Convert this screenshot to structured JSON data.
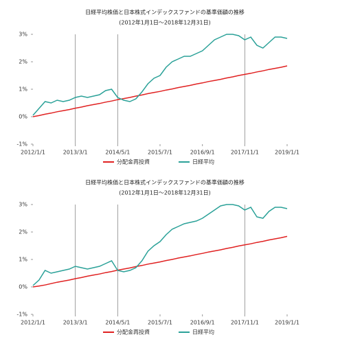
{
  "chart_data": [
    {
      "type": "line",
      "title": "日経平均株価と日本株式インデックスファンドの基準価額の推移",
      "subtitle": "(2012年1月1日～2018年12月31日)",
      "x": [
        0,
        2,
        4,
        6,
        8,
        10,
        12,
        14,
        16,
        18,
        20,
        22,
        24,
        26,
        28,
        30,
        32,
        34,
        36,
        38,
        40,
        42,
        44,
        46,
        48,
        50,
        52,
        54,
        56,
        58,
        60,
        62,
        64,
        66,
        68,
        70,
        72,
        74,
        76,
        78,
        80,
        82,
        84
      ],
      "xlim": [
        0,
        84
      ],
      "xticks": [
        {
          "value": 0,
          "label": "2012/1/1"
        },
        {
          "value": 14,
          "label": "2013/3/1"
        },
        {
          "value": 28,
          "label": "2014/5/1"
        },
        {
          "value": 42,
          "label": "2015/7/1"
        },
        {
          "value": 56,
          "label": "2016/9/1"
        },
        {
          "value": 70,
          "label": "2017/11/1"
        },
        {
          "value": 84,
          "label": "2019/1/1"
        }
      ],
      "vlines": [
        14,
        28,
        70
      ],
      "ylim": [
        -1,
        3
      ],
      "yticks": [
        {
          "value": -1,
          "label": "-1%"
        },
        {
          "value": 0,
          "label": "0%"
        },
        {
          "value": 1,
          "label": "1%"
        },
        {
          "value": 2,
          "label": "2%"
        },
        {
          "value": 3,
          "label": "3%"
        }
      ],
      "series": [
        {
          "name": "分配金再投資",
          "color": "#e02020",
          "values": [
            0,
            0.04,
            0.09,
            0.13,
            0.18,
            0.22,
            0.26,
            0.31,
            0.35,
            0.4,
            0.44,
            0.48,
            0.53,
            0.57,
            0.62,
            0.66,
            0.7,
            0.75,
            0.79,
            0.84,
            0.88,
            0.92,
            0.97,
            1.01,
            1.06,
            1.1,
            1.14,
            1.19,
            1.23,
            1.28,
            1.32,
            1.36,
            1.41,
            1.45,
            1.5,
            1.54,
            1.58,
            1.63,
            1.67,
            1.72,
            1.76,
            1.8,
            1.85
          ]
        },
        {
          "name": "日経平均",
          "color": "#2aa198",
          "values": [
            0.05,
            0.3,
            0.55,
            0.5,
            0.6,
            0.55,
            0.6,
            0.7,
            0.75,
            0.7,
            0.75,
            0.8,
            0.95,
            1.0,
            0.7,
            0.6,
            0.55,
            0.65,
            0.9,
            1.2,
            1.4,
            1.5,
            1.8,
            2.0,
            2.1,
            2.2,
            2.2,
            2.3,
            2.4,
            2.6,
            2.8,
            2.9,
            3.0,
            3.0,
            2.95,
            2.8,
            2.9,
            2.6,
            2.5,
            2.7,
            2.9,
            2.9,
            2.85
          ]
        }
      ]
    },
    {
      "type": "line",
      "title": "日経平均株価と日本株式インデックスファンドの基準価額の推移",
      "subtitle": "(2012年1月1日～2018年12月31日)",
      "x": [
        0,
        2,
        4,
        6,
        8,
        10,
        12,
        14,
        16,
        18,
        20,
        22,
        24,
        26,
        28,
        30,
        32,
        34,
        36,
        38,
        40,
        42,
        44,
        46,
        48,
        50,
        52,
        54,
        56,
        58,
        60,
        62,
        64,
        66,
        68,
        70,
        72,
        74,
        76,
        78,
        80,
        82,
        84
      ],
      "xlim": [
        0,
        84
      ],
      "xticks": [
        {
          "value": 0,
          "label": "2012/1/1"
        },
        {
          "value": 14,
          "label": "2013/3/1"
        },
        {
          "value": 28,
          "label": "2014/5/1"
        },
        {
          "value": 42,
          "label": "2015/7/1"
        },
        {
          "value": 56,
          "label": "2016/9/1"
        },
        {
          "value": 70,
          "label": "2017/11/1"
        },
        {
          "value": 84,
          "label": "2019/1/1"
        }
      ],
      "vlines": [
        14,
        28,
        70
      ],
      "ylim": [
        -1,
        3
      ],
      "yticks": [
        {
          "value": -1,
          "label": "-1%"
        },
        {
          "value": 0,
          "label": "0%"
        },
        {
          "value": 1,
          "label": "1%"
        },
        {
          "value": 2,
          "label": "2%"
        },
        {
          "value": 3,
          "label": "3%"
        }
      ],
      "series": [
        {
          "name": "分配金再投資",
          "color": "#e02020",
          "values": [
            0,
            0.03,
            0.07,
            0.12,
            0.17,
            0.21,
            0.25,
            0.3,
            0.34,
            0.39,
            0.43,
            0.47,
            0.52,
            0.56,
            0.61,
            0.65,
            0.69,
            0.74,
            0.78,
            0.83,
            0.87,
            0.91,
            0.96,
            1.0,
            1.05,
            1.09,
            1.13,
            1.18,
            1.22,
            1.27,
            1.31,
            1.35,
            1.4,
            1.44,
            1.49,
            1.53,
            1.57,
            1.62,
            1.66,
            1.71,
            1.75,
            1.79,
            1.84
          ]
        },
        {
          "name": "日経平均",
          "color": "#2aa198",
          "values": [
            0.05,
            0.25,
            0.6,
            0.5,
            0.55,
            0.6,
            0.65,
            0.75,
            0.7,
            0.65,
            0.7,
            0.75,
            0.85,
            0.95,
            0.6,
            0.55,
            0.6,
            0.7,
            0.95,
            1.3,
            1.5,
            1.65,
            1.9,
            2.1,
            2.2,
            2.3,
            2.35,
            2.4,
            2.5,
            2.65,
            2.8,
            2.95,
            3.0,
            3.0,
            2.95,
            2.8,
            2.9,
            2.55,
            2.5,
            2.75,
            2.9,
            2.9,
            2.85
          ]
        }
      ]
    }
  ]
}
